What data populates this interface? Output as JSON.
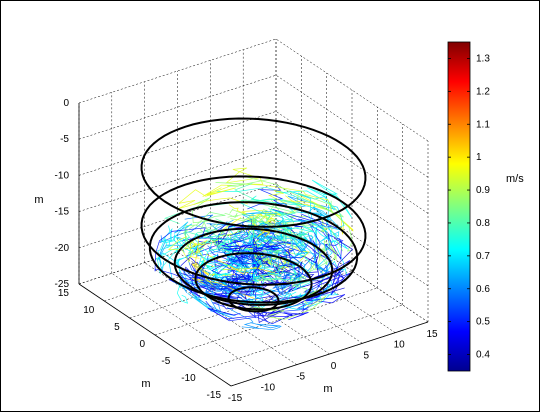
{
  "chart_data": {
    "type": "3d-trajectory",
    "axes": {
      "x": {
        "label": "m",
        "ticks": [
          "-15",
          "-10",
          "-5",
          "0",
          "5",
          "10",
          "15"
        ],
        "range": [
          -15,
          15
        ]
      },
      "y": {
        "label": "m",
        "ticks": [
          "-15",
          "-10",
          "-5",
          "0",
          "5",
          "10",
          "15"
        ],
        "range": [
          -15,
          15
        ]
      },
      "z": {
        "label": "m",
        "ticks": [
          "-25",
          "-20",
          "-15",
          "-10",
          "-5",
          "0"
        ],
        "range": [
          -25,
          0
        ]
      }
    },
    "grid": true,
    "tank_rings": [
      {
        "depth": -7,
        "radius": 13.5
      },
      {
        "depth": -15,
        "radius": 13.5
      },
      {
        "depth": -18,
        "radius": 12.5
      },
      {
        "depth": -20,
        "radius": 9.5
      },
      {
        "depth": -22,
        "radius": 7
      },
      {
        "depth": -24.5,
        "radius": 3
      }
    ],
    "colorbar": {
      "label": "m/s",
      "min": 0.35,
      "max": 1.35,
      "ticks": [
        "0.4",
        "0.5",
        "0.6",
        "0.7",
        "0.8",
        "0.9",
        "1",
        "1.1",
        "1.2",
        "1.3"
      ],
      "colormap": "jet"
    },
    "trajectories": {
      "region": "lower tank, depth -13 to -24 m",
      "speed_range": [
        0.4,
        1.0
      ]
    }
  }
}
